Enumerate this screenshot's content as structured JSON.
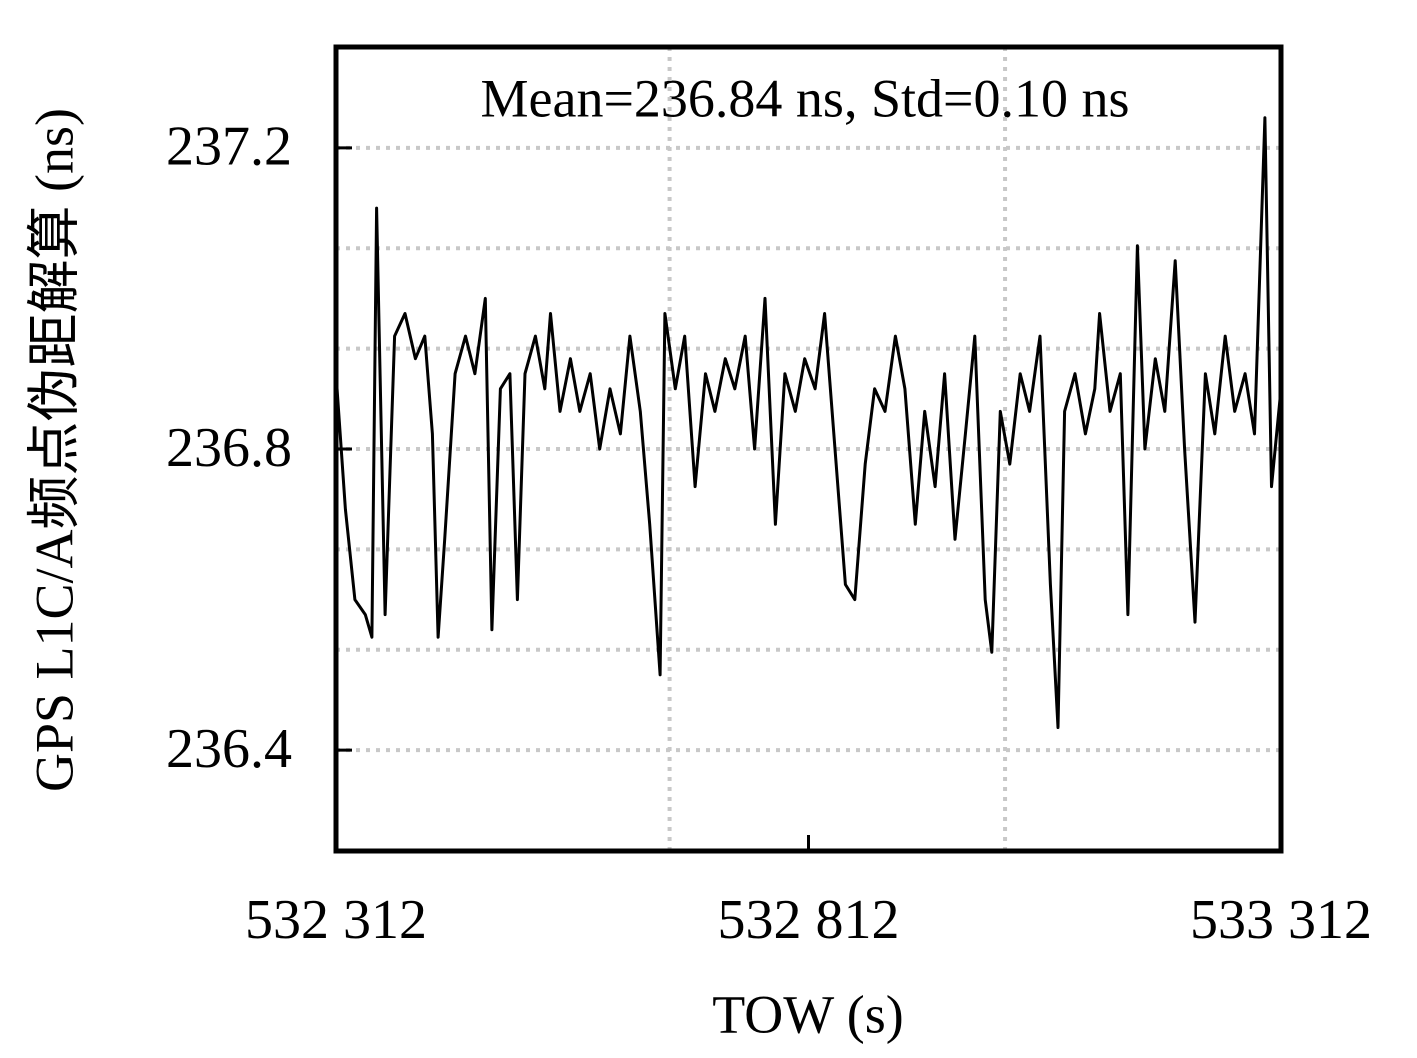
{
  "chart_data": {
    "type": "line",
    "annotation": "Mean=236.84 ns, Std=0.10 ns",
    "xlabel": "TOW (s)",
    "ylabel": "GPS L1C/A频点伪距解算 (ns)",
    "xlim": [
      532312,
      533312
    ],
    "ylim": [
      236.266,
      237.334
    ],
    "xticks": [
      {
        "value": 532312,
        "label": "532 312"
      },
      {
        "value": 532812,
        "label": "532 812"
      },
      {
        "value": 533312,
        "label": "533 312"
      }
    ],
    "yticks": [
      236.4,
      236.8,
      237.2
    ],
    "xgrid": [
      532665,
      533020
    ],
    "ygrid": [
      236.4,
      236.5333,
      236.6667,
      236.8,
      236.9333,
      237.0667,
      237.2
    ],
    "grid": true,
    "series": [
      {
        "name": null,
        "color": "#000000",
        "x": [
          532312,
          532322,
          532332,
          532343,
          532350,
          532355,
          532364,
          532374,
          532385,
          532396,
          532406,
          532414,
          532420,
          532427,
          532438,
          532449,
          532459,
          532470,
          532477,
          532486,
          532496,
          532504,
          532512,
          532523,
          532533,
          532539,
          532549,
          532560,
          532570,
          532581,
          532591,
          532602,
          532613,
          532623,
          532634,
          532644,
          532655,
          532660,
          532671,
          532681,
          532692,
          532703,
          532713,
          532724,
          532734,
          532745,
          532755,
          532766,
          532777,
          532787,
          532798,
          532808,
          532819,
          532829,
          532840,
          532851,
          532861,
          532872,
          532882,
          532893,
          532904,
          532914,
          532925,
          532935,
          532946,
          532956,
          532967,
          532978,
          532988,
          532999,
          533006,
          533015,
          533025,
          533036,
          533046,
          533057,
          533068,
          533076,
          533083,
          533094,
          533105,
          533115,
          533120,
          533131,
          533142,
          533150,
          533160,
          533168,
          533179,
          533189,
          533200,
          533210,
          533221,
          533232,
          533242,
          533253,
          533263,
          533274,
          533284,
          533295,
          533302,
          533312
        ],
        "values": [
          236.9,
          236.72,
          236.6,
          236.58,
          236.55,
          237.12,
          236.58,
          236.95,
          236.98,
          236.92,
          236.95,
          236.82,
          236.55,
          236.68,
          236.9,
          236.95,
          236.9,
          237.0,
          236.56,
          236.88,
          236.9,
          236.6,
          236.9,
          236.95,
          236.88,
          236.98,
          236.85,
          236.92,
          236.85,
          236.9,
          236.8,
          236.88,
          236.82,
          236.95,
          236.85,
          236.7,
          236.5,
          236.98,
          236.88,
          236.95,
          236.75,
          236.9,
          236.85,
          236.92,
          236.88,
          236.95,
          236.8,
          237.0,
          236.7,
          236.9,
          236.85,
          236.92,
          236.88,
          236.98,
          236.8,
          236.62,
          236.6,
          236.78,
          236.88,
          236.85,
          236.95,
          236.88,
          236.7,
          236.85,
          236.75,
          236.9,
          236.68,
          236.82,
          236.95,
          236.6,
          236.53,
          236.85,
          236.78,
          236.9,
          236.85,
          236.95,
          236.62,
          236.43,
          236.85,
          236.9,
          236.82,
          236.88,
          236.98,
          236.85,
          236.9,
          236.58,
          237.07,
          236.8,
          236.92,
          236.85,
          237.05,
          236.8,
          236.57,
          236.9,
          236.82,
          236.95,
          236.85,
          236.9,
          236.82,
          237.24,
          236.75,
          236.88
        ]
      }
    ]
  }
}
